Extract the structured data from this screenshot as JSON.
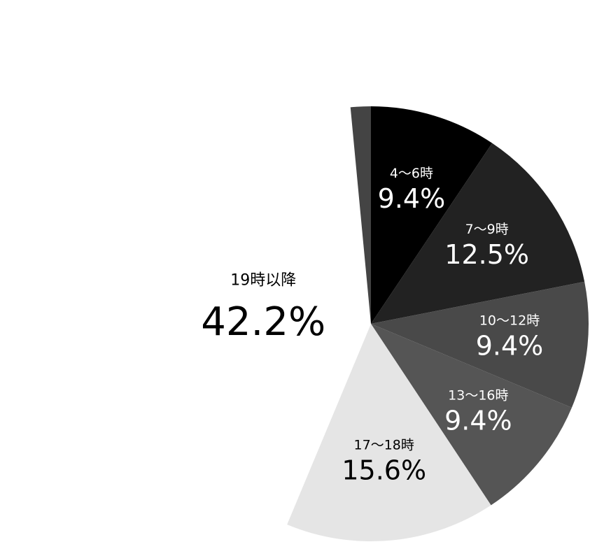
{
  "chart_data": {
    "type": "pie",
    "categories": [
      "4〜6時",
      "7〜9時",
      "10〜12時",
      "13〜16時",
      "17〜18時",
      "19時以降",
      null
    ],
    "values": [
      9.4,
      12.5,
      9.4,
      9.4,
      15.6,
      42.2,
      1.5
    ],
    "value_labels": [
      "9.4%",
      "12.5%",
      "9.4%",
      "9.4%",
      "15.6%",
      "42.2%",
      null
    ],
    "colors": [
      "#000000",
      "#222222",
      "#494949",
      "#555555",
      "#e5e5e5",
      "#ffffff",
      "#444444"
    ]
  }
}
